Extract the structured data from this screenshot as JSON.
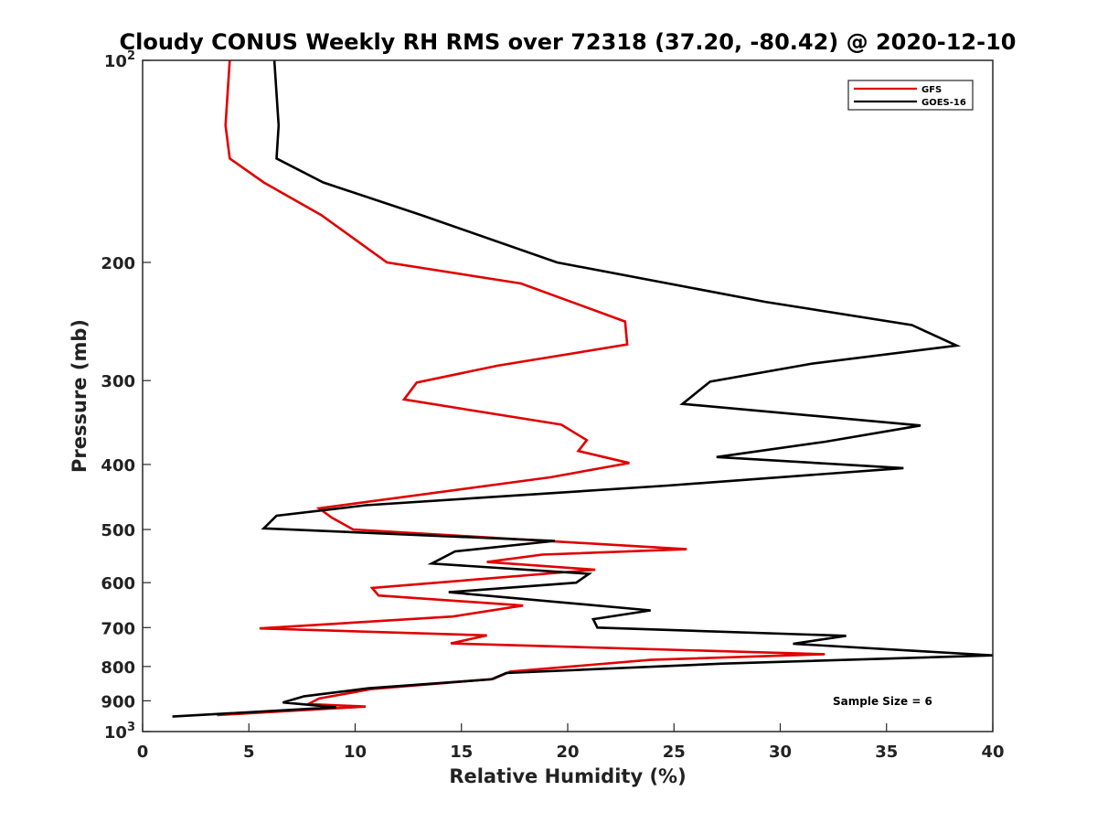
{
  "chart_data": {
    "type": "line",
    "title": "Cloudy CONUS Weekly RH RMS over 72318 (37.20, -80.42) @ 2020-12-10",
    "xlabel": "Relative Humidity (%)",
    "ylabel": "Pressure (mb)",
    "xlim": [
      0,
      40
    ],
    "ylim": [
      100,
      1000
    ],
    "yscale": "log",
    "y_reversed": true,
    "grid": false,
    "legend_position": "top-right",
    "x_ticks": [
      0,
      5,
      10,
      15,
      20,
      25,
      30,
      35,
      40
    ],
    "x_tick_labels": [
      "0",
      "5",
      "10",
      "15",
      "20",
      "25",
      "30",
      "35",
      "40"
    ],
    "y_ticks": [
      100,
      200,
      300,
      400,
      500,
      600,
      700,
      800,
      900,
      1000
    ],
    "y_tick_labels": [
      {
        "base": "10",
        "exp": "2"
      },
      {
        "base": "200",
        "exp": ""
      },
      {
        "base": "300",
        "exp": ""
      },
      {
        "base": "400",
        "exp": ""
      },
      {
        "base": "500",
        "exp": ""
      },
      {
        "base": "600",
        "exp": ""
      },
      {
        "base": "700",
        "exp": ""
      },
      {
        "base": "800",
        "exp": ""
      },
      {
        "base": "900",
        "exp": ""
      },
      {
        "base": "10",
        "exp": "3"
      }
    ],
    "annotation": "Sample Size = 6",
    "series": [
      {
        "name": "GFS",
        "color": "#e00000",
        "x": [
          4.1,
          3.9,
          4.1,
          5.7,
          8.4,
          11.5,
          17.8,
          22.7,
          22.8,
          16.7,
          12.9,
          12.3,
          19.7,
          20.9,
          20.5,
          22.9,
          19.2,
          8.3,
          8.9,
          9.9,
          25.6,
          18.8,
          16.2,
          21.3,
          10.8,
          11.1,
          17.9,
          14.6,
          5.5,
          16.2,
          14.5,
          32.1,
          23.9,
          17.3,
          16.5,
          10.8,
          8.3,
          7.8,
          10.5,
          3.5
        ],
        "y": [
          100,
          125,
          140,
          152,
          170,
          200,
          215,
          245,
          265,
          285,
          302,
          320,
          349,
          368,
          382,
          398,
          418,
          465,
          480,
          500,
          535,
          545,
          559,
          574,
          611,
          627,
          649,
          674,
          702,
          719,
          739,
          767,
          782,
          814,
          835,
          864,
          893,
          910,
          918,
          945
        ]
      },
      {
        "name": "GOES-16",
        "color": "#000000",
        "x": [
          6.2,
          6.4,
          6.3,
          8.5,
          13.1,
          19.5,
          29.3,
          36.2,
          38.3,
          31.5,
          26.7,
          25.4,
          36.6,
          32.1,
          27.0,
          35.8,
          24.7,
          10.5,
          6.3,
          5.7,
          19.4,
          14.7,
          13.6,
          21.0,
          20.4,
          14.4,
          23.9,
          21.2,
          21.4,
          33.1,
          30.6,
          40.0,
          27.3,
          17.1,
          16.4,
          10.6,
          7.6,
          6.6,
          9.1,
          1.4
        ],
        "y": [
          100,
          125,
          140,
          152,
          170,
          200,
          229,
          248,
          266,
          283,
          301,
          325,
          350,
          370,
          390,
          405,
          430,
          460,
          477,
          498,
          520,
          539,
          562,
          582,
          600,
          620,
          660,
          680,
          700,
          720,
          740,
          770,
          792,
          818,
          836,
          862,
          886,
          905,
          920,
          950
        ]
      }
    ]
  }
}
